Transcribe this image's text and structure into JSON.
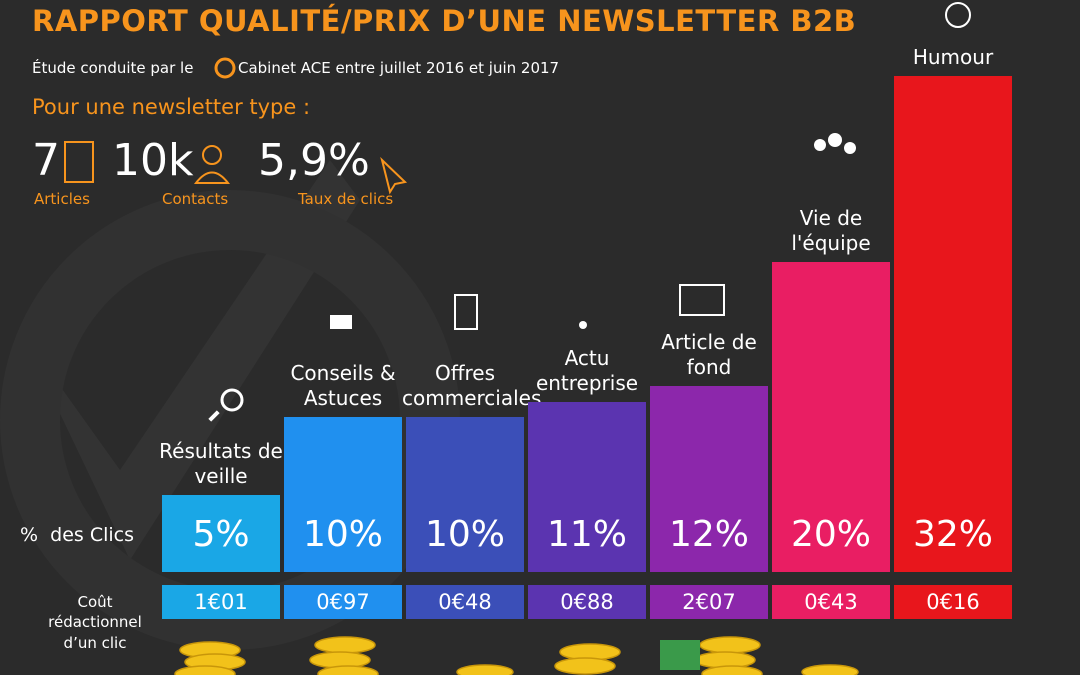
{
  "header": {
    "title": "RAPPORT QUALITÉ/PRIX D’UNE NEWSLETTER B2B",
    "subtitle_start": "Étude conduite par le",
    "subtitle_end": "Cabinet ACE entre juillet 2016 et juin 2017",
    "intro": "Pour une newsletter type :",
    "stats": [
      {
        "value": "7",
        "label": "Articles"
      },
      {
        "value": "10k",
        "label": "Contacts"
      },
      {
        "value": "5,9%",
        "label": "Taux de clics"
      }
    ]
  },
  "chart_data": {
    "type": "bar",
    "row_label": "%  des Clics",
    "categories": [
      "Résultats de veille",
      "Conseils & Astuces",
      "Offres commerciales",
      "Actu entreprise",
      "Article de fond",
      "Vie de l'équipe",
      "Humour"
    ],
    "values": [
      5,
      10,
      10,
      11,
      12,
      20,
      32
    ],
    "value_labels": [
      "5%",
      "10%",
      "10%",
      "11%",
      "12%",
      "20%",
      "32%"
    ],
    "colors": [
      "#1aa7e6",
      "#2090ef",
      "#3b4fb8",
      "#5b34b0",
      "#8c27ab",
      "#e91e63",
      "#e8161c"
    ],
    "ylim": [
      0,
      34
    ]
  },
  "cost_row": {
    "label": "Coût rédactionnel d’un clic",
    "values": [
      "1€01",
      "0€97",
      "0€48",
      "0€88",
      "2€07",
      "0€43",
      "0€16"
    ]
  }
}
